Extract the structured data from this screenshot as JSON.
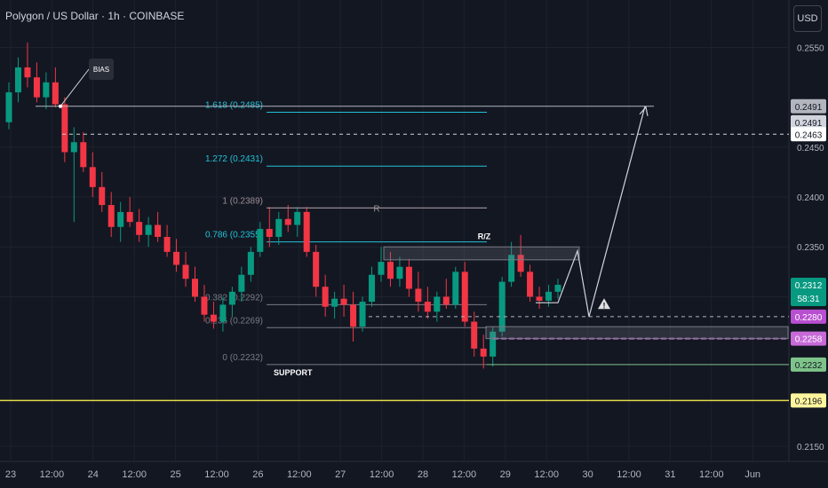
{
  "header": {
    "title": "Polygon / US Dollar · 1h · COINBASE"
  },
  "currency_button": "USD",
  "chart_data": {
    "type": "candlestick",
    "title": "Polygon / US Dollar · 1h · COINBASE",
    "ylim": [
      0.2142,
      0.2562
    ],
    "y_ticks": [
      {
        "v": 0.255,
        "label": "0.2550"
      },
      {
        "v": 0.245,
        "label": "0.2450"
      },
      {
        "v": 0.24,
        "label": "0.2400"
      },
      {
        "v": 0.235,
        "label": "0.2350"
      },
      {
        "v": 0.23,
        "label": "0.2300"
      },
      {
        "v": 0.215,
        "label": "0.2150"
      }
    ],
    "x_ticks": [
      "23",
      "12:00",
      "24",
      "12:00",
      "25",
      "12:00",
      "26",
      "12:00",
      "27",
      "12:00",
      "28",
      "12:00",
      "29",
      "12:00",
      "30",
      "12:00",
      "31",
      "12:00",
      "Jun"
    ],
    "candles": [
      [
        0.2475,
        0.2515,
        0.2468,
        0.2505
      ],
      [
        0.2505,
        0.254,
        0.2495,
        0.253
      ],
      [
        0.253,
        0.2555,
        0.251,
        0.252
      ],
      [
        0.252,
        0.2535,
        0.2495,
        0.25
      ],
      [
        0.25,
        0.2525,
        0.2488,
        0.2515
      ],
      [
        0.2515,
        0.253,
        0.249,
        0.2493
      ],
      [
        0.2493,
        0.25,
        0.2435,
        0.2445
      ],
      [
        0.2445,
        0.247,
        0.2375,
        0.2455
      ],
      [
        0.2455,
        0.2465,
        0.2425,
        0.243
      ],
      [
        0.243,
        0.2445,
        0.24,
        0.241
      ],
      [
        0.241,
        0.2425,
        0.2385,
        0.2392
      ],
      [
        0.2392,
        0.2405,
        0.236,
        0.237
      ],
      [
        0.237,
        0.2395,
        0.2355,
        0.2385
      ],
      [
        0.2385,
        0.24,
        0.237,
        0.2375
      ],
      [
        0.2375,
        0.2388,
        0.2355,
        0.2362
      ],
      [
        0.2362,
        0.238,
        0.235,
        0.2372
      ],
      [
        0.2372,
        0.2385,
        0.2355,
        0.236
      ],
      [
        0.236,
        0.2372,
        0.234,
        0.2345
      ],
      [
        0.2345,
        0.2358,
        0.2325,
        0.2332
      ],
      [
        0.2332,
        0.2345,
        0.231,
        0.2318
      ],
      [
        0.2318,
        0.233,
        0.2295,
        0.23
      ],
      [
        0.23,
        0.2312,
        0.2275,
        0.2282
      ],
      [
        0.2282,
        0.2295,
        0.2268,
        0.2275
      ],
      [
        0.2275,
        0.23,
        0.2265,
        0.2292
      ],
      [
        0.2292,
        0.231,
        0.228,
        0.2305
      ],
      [
        0.2305,
        0.233,
        0.2295,
        0.2322
      ],
      [
        0.2322,
        0.235,
        0.2315,
        0.2345
      ],
      [
        0.2345,
        0.2375,
        0.234,
        0.2368
      ],
      [
        0.2368,
        0.239,
        0.235,
        0.236
      ],
      [
        0.236,
        0.2385,
        0.2352,
        0.2378
      ],
      [
        0.2378,
        0.2392,
        0.2365,
        0.2372
      ],
      [
        0.2372,
        0.239,
        0.236,
        0.2385
      ],
      [
        0.2385,
        0.239,
        0.234,
        0.2345
      ],
      [
        0.2345,
        0.2352,
        0.23,
        0.231
      ],
      [
        0.231,
        0.2322,
        0.228,
        0.229
      ],
      [
        0.229,
        0.2305,
        0.2278,
        0.2298
      ],
      [
        0.2298,
        0.2312,
        0.228,
        0.2292
      ],
      [
        0.2292,
        0.2305,
        0.2255,
        0.227
      ],
      [
        0.227,
        0.23,
        0.2265,
        0.2295
      ],
      [
        0.2295,
        0.233,
        0.229,
        0.2322
      ],
      [
        0.2322,
        0.235,
        0.2315,
        0.2335
      ],
      [
        0.2335,
        0.2345,
        0.231,
        0.2318
      ],
      [
        0.2318,
        0.234,
        0.231,
        0.233
      ],
      [
        0.233,
        0.2338,
        0.23,
        0.2308
      ],
      [
        0.2308,
        0.2325,
        0.2285,
        0.2295
      ],
      [
        0.2295,
        0.231,
        0.2278,
        0.2285
      ],
      [
        0.2285,
        0.2305,
        0.2275,
        0.23
      ],
      [
        0.23,
        0.2318,
        0.2288,
        0.2292
      ],
      [
        0.2292,
        0.233,
        0.2288,
        0.2325
      ],
      [
        0.2325,
        0.2335,
        0.227,
        0.2275
      ],
      [
        0.2275,
        0.2285,
        0.224,
        0.2248
      ],
      [
        0.2248,
        0.2262,
        0.2228,
        0.224
      ],
      [
        0.224,
        0.227,
        0.223,
        0.2265
      ],
      [
        0.2265,
        0.232,
        0.226,
        0.2315
      ],
      [
        0.2315,
        0.2355,
        0.231,
        0.2342
      ],
      [
        0.2342,
        0.2362,
        0.232,
        0.2325
      ],
      [
        0.2325,
        0.2332,
        0.2295,
        0.23
      ],
      [
        0.23,
        0.231,
        0.2288,
        0.2296
      ],
      [
        0.2296,
        0.2312,
        0.229,
        0.2305
      ],
      [
        0.2305,
        0.2318,
        0.2298,
        0.2312
      ]
    ],
    "fib_levels": [
      {
        "label": "1.618 (0.2485)",
        "price": 0.2485,
        "color": "#22c2d6"
      },
      {
        "label": "1.272 (0.2431)",
        "price": 0.2431,
        "color": "#22c2d6"
      },
      {
        "label": "1 (0.2389)",
        "price": 0.2389,
        "color": "#9b8f97"
      },
      {
        "label": "0.786 (0.2355)",
        "price": 0.2355,
        "color": "#22c2d6"
      },
      {
        "label": "0.382 (0.2292)",
        "price": 0.2292,
        "color": "#787b86"
      },
      {
        "label": "0.236 (0.2269)",
        "price": 0.2269,
        "color": "#787b86"
      },
      {
        "label": "0 (0.2232)",
        "price": 0.2232,
        "color": "#787b86"
      }
    ],
    "annotations": {
      "bias": "BIAS",
      "r": "R",
      "rz": "R/Z",
      "support": "SUPPORT",
      "warning": "!"
    },
    "price_labels": [
      {
        "price": 0.2491,
        "text": "0.2491",
        "bg": "#b2b5be",
        "fg": "#131722"
      },
      {
        "price": 0.2491,
        "text": "0.2491",
        "bg": "#d1d4dc",
        "fg": "#131722"
      },
      {
        "price": 0.2463,
        "text": "0.2463",
        "bg": "#ffffff",
        "fg": "#131722"
      },
      {
        "price": 0.2312,
        "text": "0.2312",
        "sub": "58:31",
        "bg": "#089981",
        "fg": "#ffffff"
      },
      {
        "price": 0.228,
        "text": "0.2280",
        "bg": "#b84fd0",
        "fg": "#ffffff"
      },
      {
        "price": 0.2258,
        "text": "0.2258",
        "bg": "#c86ad8",
        "fg": "#ffffff"
      },
      {
        "price": 0.2232,
        "text": "0.2232",
        "bg": "#7ec48a",
        "fg": "#131722"
      },
      {
        "price": 0.2196,
        "text": "0.2196",
        "bg": "#fff59d",
        "fg": "#131722"
      }
    ],
    "colors": {
      "up": "#089981",
      "down": "#f23645",
      "grid": "#1e222d",
      "axis_text": "#b2b5be",
      "support_line": "#e6d94a"
    }
  }
}
